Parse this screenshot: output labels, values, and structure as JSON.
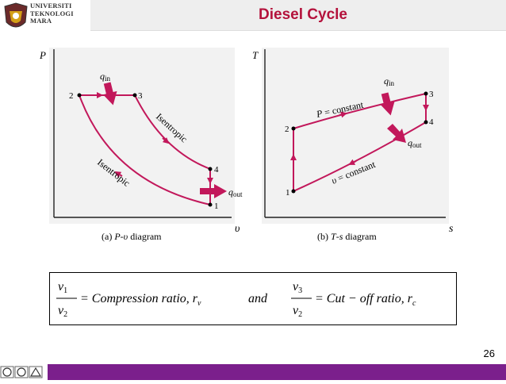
{
  "header": {
    "logo_lines": [
      "UNIVERSITI",
      "TEKNOLOGI",
      "MARA"
    ],
    "title": "Diesel Cycle"
  },
  "pv_diagram": {
    "y_axis_label": "P",
    "x_axis_label": "υ",
    "points": [
      "1",
      "2",
      "3",
      "4"
    ],
    "q_in": "q",
    "q_in_sub": "in",
    "q_out": "q",
    "q_out_sub": "out",
    "process_23_24": "Isentropic",
    "process_12": "Isentropic",
    "caption_prefix": "(a) ",
    "caption_var": "P",
    "caption_dash": "-",
    "caption_var2": "υ",
    "caption_suffix": "diagram"
  },
  "ts_diagram": {
    "y_axis_label": "T",
    "x_axis_label": "s",
    "points": [
      "1",
      "2",
      "3",
      "4"
    ],
    "q_in": "q",
    "q_in_sub": "in",
    "q_out": "q",
    "q_out_sub": "out",
    "p_const_var": "P",
    "p_const_text": " = constant",
    "v_const_var": "υ",
    "v_const_text": " = constant",
    "caption_prefix": "(b) ",
    "caption_var": "T",
    "caption_dash": "-",
    "caption_var2": "s",
    "caption_suffix": " diagram"
  },
  "formula": {
    "f1_num": "v",
    "f1_num_sub": "1",
    "f1_den": "v",
    "f1_den_sub": "2",
    "f1_text": "= Compression ratio, r",
    "f1_r_sub": "v",
    "and_text": "and",
    "f2_num": "v",
    "f2_num_sub": "3",
    "f2_den": "v",
    "f2_den_sub": "2",
    "f2_text": "= Cut − off  ratio, r",
    "f2_r_sub": "c"
  },
  "page_number": "26",
  "colors": {
    "title": "#b4123c",
    "curve": "#c2185b",
    "footer": "#7b1f8c"
  }
}
